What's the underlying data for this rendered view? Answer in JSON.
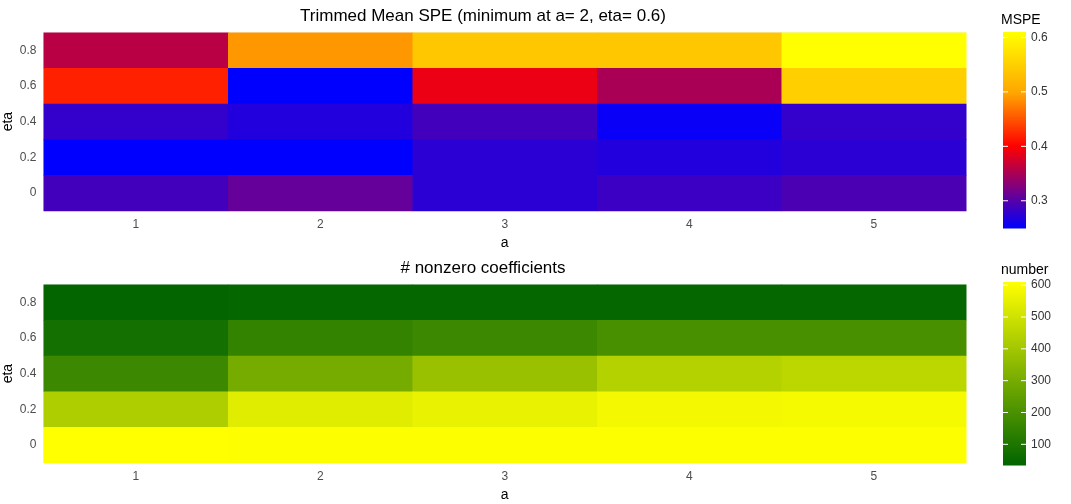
{
  "chart_data": [
    {
      "type": "heatmap",
      "title": "Trimmed Mean SPE (minimum at a= 2, eta= 0.6)",
      "xlabel": "a",
      "ylabel": "eta",
      "clabel": "MSPE",
      "categories": [
        "1",
        "2",
        "3",
        "4",
        "5"
      ],
      "y_categories": [
        "0.8",
        "0.6",
        "0.4",
        "0.2",
        "0"
      ],
      "cells": [
        [
          0.36,
          0.49,
          0.54,
          0.54,
          0.61
        ],
        [
          0.42,
          0.25,
          0.39,
          0.35,
          0.55
        ],
        [
          0.28,
          0.27,
          0.29,
          0.255,
          0.28
        ],
        [
          0.25,
          0.25,
          0.275,
          0.27,
          0.275
        ],
        [
          0.29,
          0.31,
          0.275,
          0.285,
          0.295
        ]
      ],
      "clim": [
        0.25,
        0.61
      ],
      "cticks": [
        0.3,
        0.4,
        0.5,
        0.6
      ]
    },
    {
      "type": "heatmap",
      "title": "# nonzero coefficients",
      "xlabel": "a",
      "ylabel": "eta",
      "clabel": "number",
      "categories": [
        "1",
        "2",
        "3",
        "4",
        "5"
      ],
      "y_categories": [
        "0.8",
        "0.6",
        "0.4",
        "0.2",
        "0"
      ],
      "cells": [
        [
          40,
          45,
          45,
          45,
          45
        ],
        [
          80,
          150,
          170,
          200,
          200
        ],
        [
          170,
          300,
          380,
          440,
          460
        ],
        [
          430,
          540,
          560,
          585,
          590
        ],
        [
          610,
          605,
          605,
          605,
          605
        ]
      ],
      "clim": [
        35,
        610
      ],
      "cticks": [
        100,
        200,
        300,
        400,
        500,
        600
      ]
    }
  ]
}
